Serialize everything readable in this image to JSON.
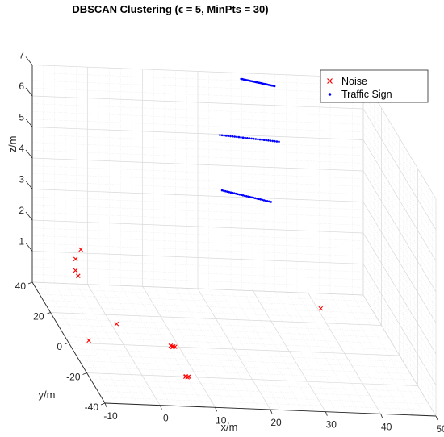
{
  "chart_data": {
    "type": "scatter",
    "projection": "3d",
    "title": "DBSCAN Clustering (ϵ = 5, MinPts = 30)",
    "xlabel": "x/m",
    "ylabel": "y/m",
    "zlabel": "z/m",
    "xlim": [
      -10,
      50
    ],
    "ylim": [
      -40,
      40
    ],
    "zlim": [
      0,
      7
    ],
    "xticks": [
      "-10",
      "0",
      "10",
      "20",
      "30",
      "40",
      "50"
    ],
    "yticks": [
      "-40",
      "-20",
      "0",
      "20",
      "40"
    ],
    "zticks": [
      "1",
      "2",
      "3",
      "4",
      "5",
      "6",
      "7"
    ],
    "grid": true,
    "legend_position": "top-right",
    "series": [
      {
        "name": "Noise",
        "marker": "x",
        "color": "#ff0000",
        "points": [
          [
            -1.5,
            38.2,
            1.2
          ],
          [
            -2.5,
            37.9,
            0.9
          ],
          [
            -2.4,
            38.6,
            0.5
          ],
          [
            -2.0,
            38.1,
            0.35
          ],
          [
            40.6,
            29.8,
            0
          ],
          [
            1.0,
            14.0,
            0
          ],
          [
            -6.0,
            2.0,
            0
          ],
          [
            8.6,
            0.6,
            0
          ],
          [
            8.9,
            0.3,
            0
          ],
          [
            9.0,
            0.1,
            0
          ],
          [
            9.3,
            0.0,
            0
          ],
          [
            8.8,
            -0.2,
            0
          ],
          [
            7.9,
            -20.0,
            0
          ],
          [
            8.2,
            -20.3,
            0
          ],
          [
            8.5,
            -19.9,
            0
          ],
          [
            8.0,
            -19.7,
            0
          ]
        ]
      },
      {
        "name": "Traffic Sign",
        "marker": ".",
        "color": "#0000ff",
        "segments": [
          [
            [
              27.2,
              36.0,
              7.0
            ],
            [
              32.6,
              32.0,
              7.0
            ]
          ],
          [
            [
              22.2,
              29.0,
              5.5
            ],
            [
              32.4,
              26.0,
              5.5
            ]
          ],
          [
            [
              23.0,
              31.5,
              3.6
            ],
            [
              30.8,
              25.0,
              3.6
            ]
          ]
        ]
      }
    ]
  }
}
